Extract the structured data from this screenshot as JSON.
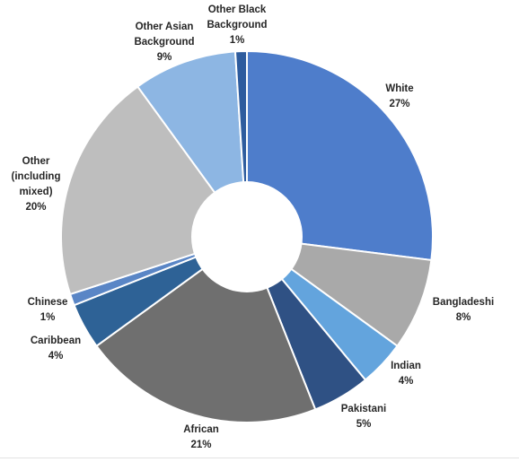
{
  "chart_data": {
    "type": "pie",
    "donut": true,
    "slices": [
      {
        "name": "White",
        "value": 27,
        "label": "27%",
        "color": "#4E7DCB"
      },
      {
        "name": "Bangladeshi",
        "value": 8,
        "label": "8%",
        "color": "#A9A9A9"
      },
      {
        "name": "Indian",
        "value": 4,
        "label": "4%",
        "color": "#63A4DD"
      },
      {
        "name": "Pakistani",
        "value": 5,
        "label": "5%",
        "color": "#2F5184"
      },
      {
        "name": "African",
        "value": 21,
        "label": "21%",
        "color": "#6F6F6F"
      },
      {
        "name": "Caribbean",
        "value": 4,
        "label": "4%",
        "color": "#2E6296"
      },
      {
        "name": "Chinese",
        "value": 1,
        "label": "1%",
        "color": "#5A86C6"
      },
      {
        "name": "Other (including mixed)",
        "value": 20,
        "label": "20%",
        "color": "#BEBEBE"
      },
      {
        "name": "Other Asian Background",
        "value": 9,
        "label": "9%",
        "color": "#8DB6E3"
      },
      {
        "name": "Other Black Background",
        "value": 1,
        "label": "1%",
        "color": "#2E5C9E"
      }
    ],
    "labels_text": {
      "white": [
        "White",
        "27%"
      ],
      "bangladeshi": [
        "Bangladeshi",
        "8%"
      ],
      "indian": [
        "Indian",
        "4%"
      ],
      "pakistani": [
        "Pakistani",
        "5%"
      ],
      "african": [
        "African",
        "21%"
      ],
      "caribbean": [
        "Caribbean",
        "4%"
      ],
      "chinese": [
        "Chinese",
        "1%"
      ],
      "other_mixed": [
        "Other",
        "(including",
        "mixed)",
        "20%"
      ],
      "other_asian": [
        "Other Asian",
        "Background",
        "9%"
      ],
      "other_black": [
        "Other Black",
        "Background",
        "1%"
      ]
    }
  }
}
